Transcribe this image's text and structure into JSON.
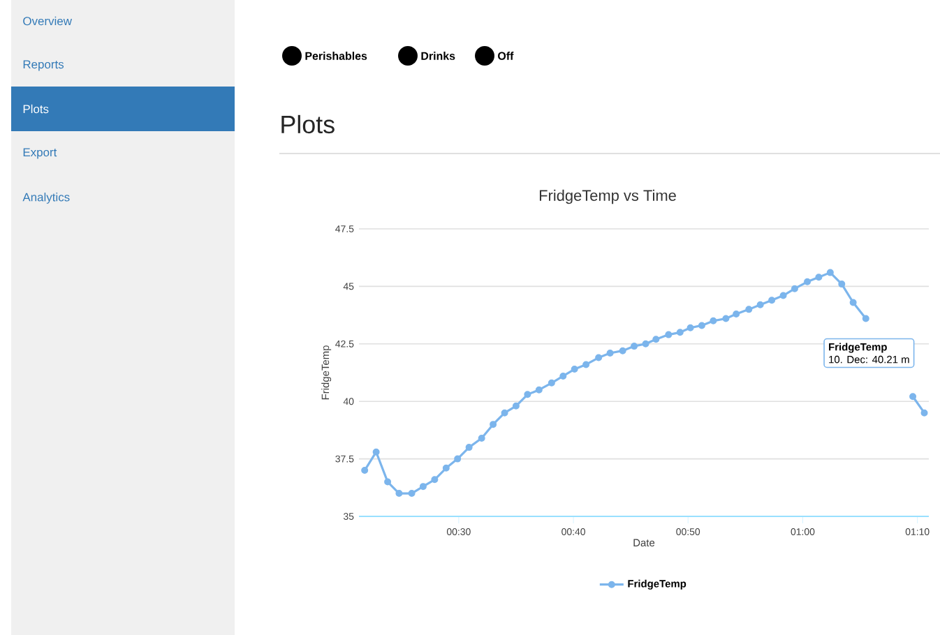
{
  "chart_data": {
    "type": "line",
    "title": "FridgeTemp vs Time",
    "xlabel": "Date",
    "ylabel": "FridgeTemp",
    "x": [
      0.3633,
      0.38,
      0.3967,
      0.4133,
      0.4317,
      0.4483,
      0.465,
      0.4817,
      0.4983,
      0.515,
      0.5333,
      0.55,
      0.5667,
      0.5833,
      0.6,
      0.6167,
      0.635,
      0.6517,
      0.6683,
      0.685,
      0.7033,
      0.72,
      0.7383,
      0.755,
      0.7717,
      0.7867,
      0.805,
      0.8217,
      0.8367,
      0.8533,
      0.87,
      0.8883,
      0.9033,
      0.9217,
      0.9383,
      0.955,
      0.9717,
      0.9883,
      1.0067,
      1.0233,
      1.04,
      1.0567,
      1.0733,
      1.0917,
      1.1083,
      1.125,
      1.1417,
      1.16,
      1.1767
    ],
    "series": [
      {
        "name": "FridgeTemp",
        "color": "#7cb5ec",
        "values": [
          37.0,
          37.8,
          36.5,
          36.0,
          36.0,
          36.3,
          36.6,
          37.1,
          37.5,
          38.0,
          38.4,
          39.0,
          39.5,
          39.8,
          40.3,
          40.5,
          40.8,
          41.1,
          41.4,
          41.6,
          41.9,
          42.1,
          42.2,
          42.4,
          42.5,
          42.7,
          42.9,
          43.0,
          43.2,
          43.3,
          43.5,
          43.6,
          43.8,
          44.0,
          44.2,
          44.4,
          44.6,
          44.9,
          45.2,
          45.4,
          45.6,
          45.1,
          44.3,
          43.6,
          null,
          null,
          null,
          40.21,
          39.5
        ]
      }
    ],
    "xlim": [
      0.355,
      1.1833
    ],
    "xticks": [
      {
        "value": 0.5,
        "label": "00:30"
      },
      {
        "value": 0.6667,
        "label": "00:40"
      },
      {
        "value": 0.8333,
        "label": "00:50"
      },
      {
        "value": 1.0,
        "label": "01:00"
      },
      {
        "value": 1.1667,
        "label": "01:10"
      }
    ],
    "ylim": [
      35,
      47.5
    ],
    "yticks": [
      35,
      37.5,
      40,
      42.5,
      45,
      47.5
    ],
    "grid": "y",
    "legend": "bottom",
    "marker": "circle",
    "line_style": "solid",
    "annotations": [
      "Overview",
      "Reports",
      "Plots",
      "Export",
      "Analytics",
      "Perishables",
      "Drinks",
      "Off",
      "Plots",
      "FridgeTemp",
      "10. Dec: 40.21 m"
    ]
  }
}
